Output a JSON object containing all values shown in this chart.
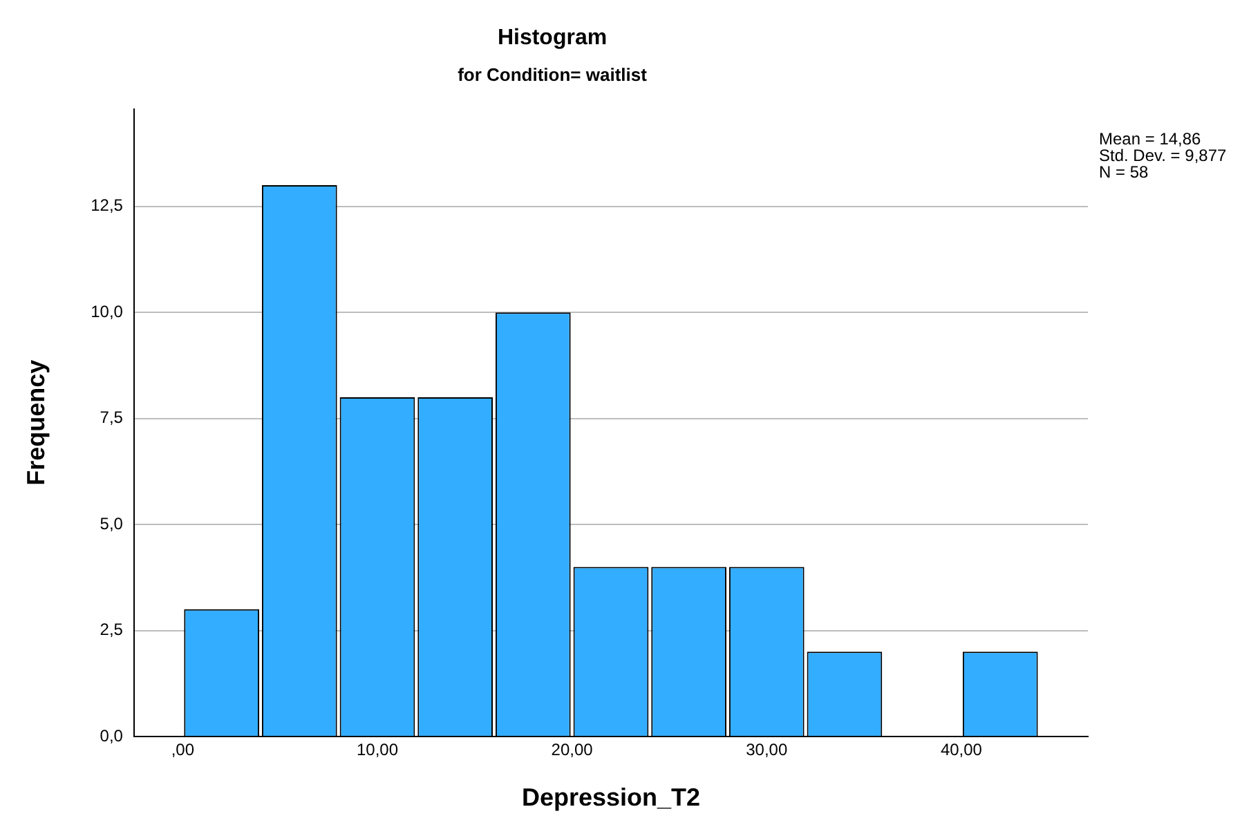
{
  "chart_data": {
    "type": "histogram",
    "title": "Histogram",
    "subtitle": "for Condition= waitlist",
    "xlabel": "Depression_T2",
    "ylabel": "Frequency",
    "bins": [
      0,
      4,
      8,
      12,
      16,
      20,
      24,
      28,
      32,
      36,
      40,
      44
    ],
    "values": [
      3,
      13,
      8,
      8,
      10,
      4,
      4,
      4,
      2,
      0,
      2
    ],
    "color": "#33adff",
    "xlim": [
      -2.5,
      46.5
    ],
    "xticks": [
      {
        "value": 0,
        "label": ",00"
      },
      {
        "value": 10,
        "label": "10,00"
      },
      {
        "value": 20,
        "label": "20,00"
      },
      {
        "value": 30,
        "label": "30,00"
      },
      {
        "value": 40,
        "label": "40,00"
      }
    ],
    "ylim": [
      0,
      14.8
    ],
    "yticks": [
      {
        "value": 0,
        "label": "0,0"
      },
      {
        "value": 2.5,
        "label": "2,5"
      },
      {
        "value": 5,
        "label": "5,0"
      },
      {
        "value": 7.5,
        "label": "7,5"
      },
      {
        "value": 10,
        "label": "10,0"
      },
      {
        "value": 12.5,
        "label": "12,5"
      }
    ],
    "grid": "y",
    "legend": false,
    "annotations": [
      "Mean = 14,86",
      "Std. Dev. = 9,877",
      "N = 58"
    ]
  }
}
